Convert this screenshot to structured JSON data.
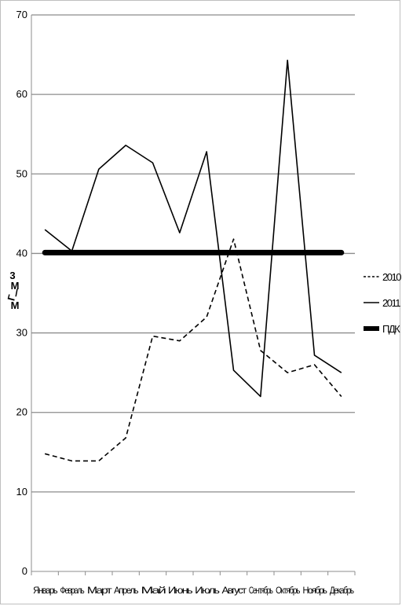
{
  "chart_data": {
    "type": "line",
    "title": "",
    "xlabel": "",
    "ylabel_parts": [
      "3",
      "М",
      "/",
      "Г",
      "М"
    ],
    "categories": [
      "Январь",
      "Февраль",
      "Март",
      "Апрель",
      "Май",
      "Июнь",
      "Июль",
      "Август",
      "Сентябрь",
      "Октябрь",
      "Ноябрь",
      "Декабрь"
    ],
    "ylim": [
      0,
      70
    ],
    "yticks": [
      0,
      10,
      20,
      30,
      40,
      50,
      60,
      70
    ],
    "grid": true,
    "legend_position": "right",
    "series": [
      {
        "name": "2010",
        "style": "dashed",
        "color": "#000000",
        "values": [
          14.8,
          13.9,
          13.9,
          16.8,
          29.6,
          29.0,
          32.0,
          41.8,
          27.8,
          25.0,
          26.0,
          22.0
        ]
      },
      {
        "name": "2011",
        "style": "solid",
        "color": "#000000",
        "values": [
          43.0,
          40.3,
          50.6,
          53.6,
          51.4,
          42.6,
          52.8,
          25.3,
          22.0,
          64.3,
          27.2,
          25.0
        ]
      },
      {
        "name": "ПДК",
        "style": "thick",
        "color": "#000000",
        "values": [
          40.1,
          40.1,
          40.1,
          40.1,
          40.1,
          40.1,
          40.1,
          40.1,
          40.1,
          40.1,
          40.1,
          40.1
        ]
      }
    ]
  }
}
